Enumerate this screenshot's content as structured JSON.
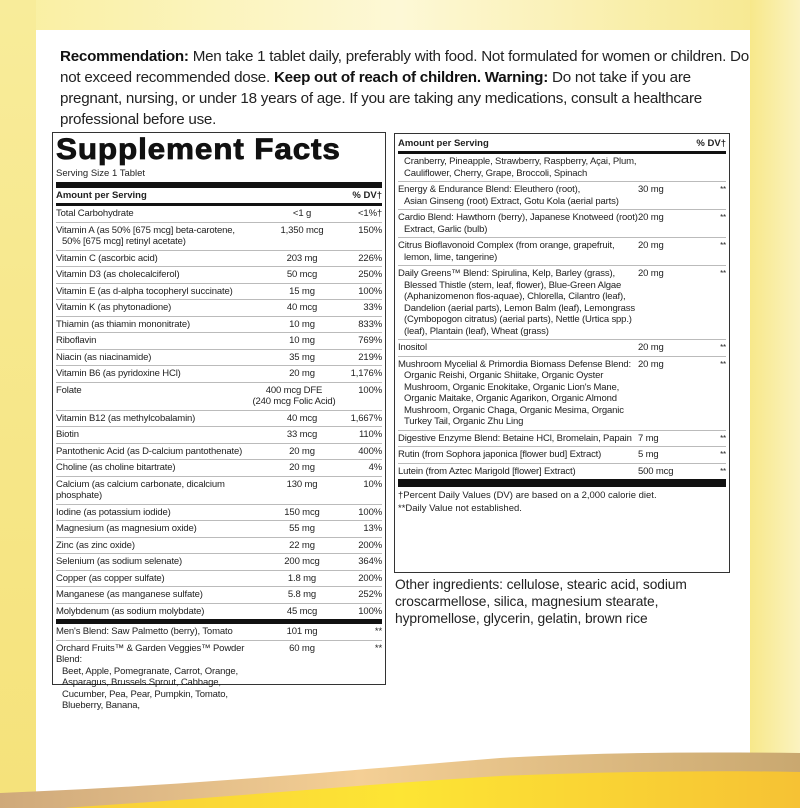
{
  "recommendation": {
    "label": "Recommendation:",
    "text1": " Men take 1 tablet daily, preferably with food. Not formulated for women or children. Do not exceed recommended dose. ",
    "keep_out": "Keep out of reach of children.",
    "warning_label": " Warning:",
    "text2": " Do not take if you are pregnant, nursing, or under 18 years of age. If you are taking any medications, consult a healthcare professional before use."
  },
  "facts": {
    "title": "Supplement Facts",
    "serving_size": "Serving Size 1 Tablet",
    "amount_header": "Amount per Serving",
    "dv_header": "% DV†",
    "left_rows": [
      {
        "name": "Total Carbohydrate",
        "amount": "<1 g",
        "dv": "<1%†"
      },
      {
        "name": "Vitamin A (as 50% [675 mcg] beta-carotene,",
        "name2": "50% [675 mcg] retinyl acetate)",
        "amount": "1,350 mcg",
        "dv": "150%"
      },
      {
        "name": "Vitamin C (ascorbic acid)",
        "amount": "203 mg",
        "dv": "226%"
      },
      {
        "name": "Vitamin D3 (as cholecalciferol)",
        "amount": "50 mcg",
        "dv": "250%"
      },
      {
        "name": "Vitamin E (as d-alpha tocopheryl succinate)",
        "amount": "15 mg",
        "dv": "100%"
      },
      {
        "name": "Vitamin K (as phytonadione)",
        "amount": "40 mcg",
        "dv": "33%"
      },
      {
        "name": "Thiamin (as thiamin mononitrate)",
        "amount": "10 mg",
        "dv": "833%"
      },
      {
        "name": "Riboflavin",
        "amount": "10 mg",
        "dv": "769%"
      },
      {
        "name": "Niacin (as niacinamide)",
        "amount": "35 mg",
        "dv": "219%"
      },
      {
        "name": "Vitamin B6 (as pyridoxine HCl)",
        "amount": "20 mg",
        "dv": "1,176%"
      },
      {
        "name": "Folate",
        "amount": "400 mcg DFE",
        "amount2": "(240 mcg Folic Acid)",
        "dv": "100%"
      },
      {
        "name": "Vitamin B12 (as methylcobalamin)",
        "amount": "40 mcg",
        "dv": "1,667%"
      },
      {
        "name": "Biotin",
        "amount": "33 mcg",
        "dv": "110%"
      },
      {
        "name": "Pantothenic Acid (as D-calcium pantothenate)",
        "amount": "20 mg",
        "dv": "400%"
      },
      {
        "name": "Choline (as choline bitartrate)",
        "amount": "20 mg",
        "dv": "4%"
      },
      {
        "name": "Calcium (as calcium carbonate, dicalcium phosphate)",
        "amount": "130 mg",
        "dv": "10%"
      },
      {
        "name": "Iodine (as potassium iodide)",
        "amount": "150 mcg",
        "dv": "100%"
      },
      {
        "name": "Magnesium (as magnesium oxide)",
        "amount": "55 mg",
        "dv": "13%"
      },
      {
        "name": "Zinc (as zinc oxide)",
        "amount": "22 mg",
        "dv": "200%"
      },
      {
        "name": "Selenium (as sodium selenate)",
        "amount": "200 mcg",
        "dv": "364%"
      },
      {
        "name": "Copper (as copper sulfate)",
        "amount": "1.8 mg",
        "dv": "200%"
      },
      {
        "name": "Manganese (as manganese sulfate)",
        "amount": "5.8 mg",
        "dv": "252%"
      },
      {
        "name": "Molybdenum (as sodium molybdate)",
        "amount": "45 mcg",
        "dv": "100%"
      },
      {
        "name": "Men's Blend: Saw Palmetto (berry), Tomato",
        "amount": "101 mg",
        "dv": "**"
      },
      {
        "name": "Orchard Fruits™ & Garden Veggies™ Powder Blend:",
        "name2": "Beet, Apple, Pomegranate, Carrot, Orange, Asparagus, Brussels Sprout, Cabbage, Cucumber, Pea, Pear, Pumpkin, Tomato, Blueberry, Banana,",
        "amount": "60 mg",
        "dv": "**"
      }
    ],
    "right_rows": [
      {
        "name": "",
        "name2": "Cranberry, Pineapple, Strawberry, Raspberry, Açai, Plum, Cauliflower, Cherry, Grape, Broccoli, Spinach",
        "amount": "",
        "dv": ""
      },
      {
        "name": "Energy & Endurance Blend: Eleuthero (root),",
        "name2": "Asian Ginseng (root) Extract, Gotu Kola (aerial parts)",
        "amount": "30 mg",
        "dv": "**"
      },
      {
        "name": "Cardio Blend: Hawthorn (berry), Japanese Knotweed (root)",
        "name2": "Extract, Garlic (bulb)",
        "amount": "20 mg",
        "dv": "**"
      },
      {
        "name": "Citrus Bioflavonoid Complex (from orange, grapefruit,",
        "name2": "lemon, lime, tangerine)",
        "amount": "20 mg",
        "dv": "**"
      },
      {
        "name": "Daily Greens™ Blend: Spirulina, Kelp, Barley (grass),",
        "name2": "Blessed Thistle (stem, leaf, flower), Blue-Green Algae (Aphanizomenon flos-aquae), Chlorella, Cilantro (leaf), Dandelion (aerial parts), Lemon Balm (leaf), Lemongrass (Cymbopogon citratus) (aerial parts), Nettle (Urtica spp.) (leaf), Plantain (leaf), Wheat (grass)",
        "amount": "20 mg",
        "dv": "**"
      },
      {
        "name": "Inositol",
        "amount": "20 mg",
        "dv": "**"
      },
      {
        "name": "Mushroom Mycelial & Primordia Biomass Defense Blend:",
        "name2": "Organic Reishi, Organic Shiitake, Organic Oyster Mushroom, Organic Enokitake, Organic Lion's Mane, Organic Maitake, Organic Agarikon, Organic Almond Mushroom, Organic Chaga, Organic Mesima, Organic Turkey Tail, Organic Zhu Ling",
        "amount": "20 mg",
        "dv": "**"
      },
      {
        "name": "Digestive Enzyme Blend: Betaine HCl, Bromelain, Papain",
        "amount": "7 mg",
        "dv": "**"
      },
      {
        "name": "Rutin (from Sophora japonica [flower bud] Extract)",
        "amount": "5 mg",
        "dv": "**"
      },
      {
        "name": "Lutein (from Aztec Marigold [flower] Extract)",
        "amount": "500 mcg",
        "dv": "**"
      }
    ],
    "footnote1": "†Percent Daily Values (DV) are based on a 2,000 calorie diet.",
    "footnote2": "**Daily Value not established."
  },
  "other_ingredients": "Other ingredients: cellulose, stearic acid, sodium croscarmellose, silica, magnesium stearate, hypromellose, glycerin, gelatin, brown rice",
  "colors": {
    "background_yellow": "#f5e27a",
    "wave_gold": "#f9d23a",
    "wave_tan": "#e8c48a"
  }
}
